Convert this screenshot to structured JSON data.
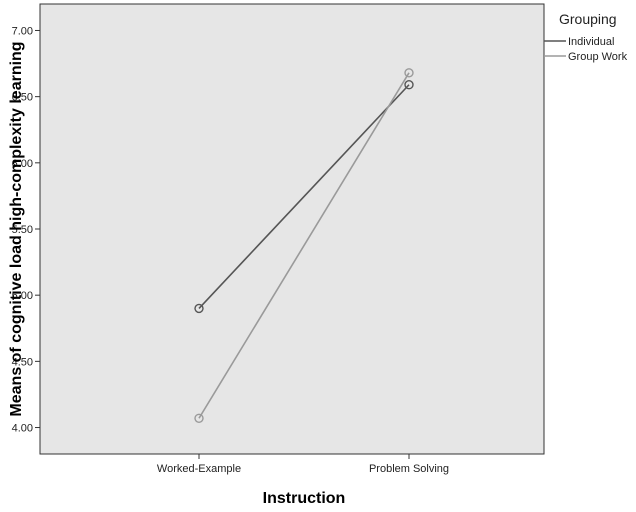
{
  "chart_data": {
    "type": "line",
    "title": "",
    "xlabel": "Instruction",
    "ylabel": "Means of cognitive load high-complexity learning",
    "categories": [
      "Worked-Example",
      "Problem Solving"
    ],
    "ylim": [
      3.8,
      7.2
    ],
    "y_ticks": [
      "4.00",
      "4.50",
      "5.00",
      "5.50",
      "6.00",
      "6.50",
      "7.00"
    ],
    "y_tick_values": [
      4.0,
      4.5,
      5.0,
      5.5,
      6.0,
      6.5,
      7.0
    ],
    "grid": false,
    "legend_title": "Grouping",
    "legend_placement": "outside-right-top",
    "plot_background": "#e6e6e6",
    "series": [
      {
        "name": "Individual",
        "values": [
          4.9,
          6.59
        ],
        "color": "#555555",
        "marker": "circle-open"
      },
      {
        "name": "Group Work",
        "values": [
          4.07,
          6.68
        ],
        "color": "#9a9a9a",
        "marker": "circle-open"
      }
    ]
  }
}
